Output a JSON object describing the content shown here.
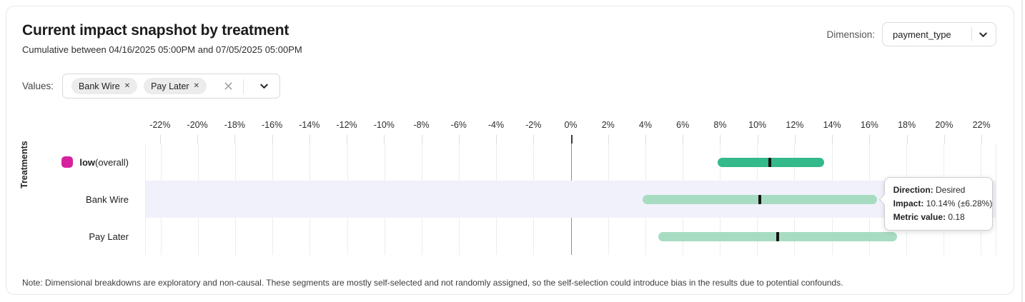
{
  "header": {
    "title": "Current impact snapshot by treatment",
    "subtitle": "Cumulative between 04/16/2025 05:00PM and 07/05/2025 05:00PM"
  },
  "dimension_selector": {
    "label": "Dimension:",
    "selected_value": "payment_type",
    "chevron_icon": "chevron-down"
  },
  "values_selector": {
    "label": "Values:",
    "chips": [
      {
        "label": "Bank Wire",
        "remove_icon": "✕"
      },
      {
        "label": "Pay Later",
        "remove_icon": "✕"
      }
    ],
    "clear_icon": "clear-x",
    "chevron_icon": "chevron-down"
  },
  "chart_data": {
    "type": "bar",
    "subtype": "horizontal-interval",
    "title": "Current impact snapshot by treatment",
    "xlabel": "",
    "ylabel": "Treatments",
    "x_unit": "%",
    "xlim": [
      -22.8,
      22.8
    ],
    "x_ticks": [
      -22,
      -20,
      -18,
      -16,
      -14,
      -12,
      -10,
      -8,
      -6,
      -4,
      -2,
      0,
      2,
      4,
      6,
      8,
      10,
      12,
      14,
      16,
      18,
      20,
      22
    ],
    "x_tick_suffix": "%",
    "grid": true,
    "rows": [
      {
        "label": "low",
        "label_suffix": " (overall)",
        "bold_label": true,
        "swatch_color": "#d6219f",
        "low": 7.9,
        "center": 10.7,
        "high": 13.6,
        "bar_color": "#34b98a",
        "marker_color": "#131313",
        "highlighted": false
      },
      {
        "label": "Bank Wire",
        "label_suffix": "",
        "bold_label": false,
        "swatch_color": null,
        "low": 3.86,
        "center": 10.14,
        "high": 16.42,
        "bar_color": "#a8dcc2",
        "marker_color": "#131313",
        "highlighted": true
      },
      {
        "label": "Pay Later",
        "label_suffix": "",
        "bold_label": false,
        "swatch_color": null,
        "low": 4.7,
        "center": 11.1,
        "high": 17.5,
        "bar_color": "#a8dcc2",
        "marker_color": "#131313",
        "highlighted": false
      }
    ],
    "colors": {
      "zero_line": "#8f8f8f",
      "gridline": "#ededed",
      "row_highlight": "#f1f1fb"
    }
  },
  "tooltip": {
    "anchor_row": "Bank Wire",
    "rows": [
      {
        "label": "Direction:",
        "value": "Desired"
      },
      {
        "label": "Impact:",
        "value": "10.14% (±6.28%)"
      },
      {
        "label": "Metric value:",
        "value": "0.18"
      }
    ]
  },
  "note": "Note: Dimensional breakdowns are exploratory and non-causal. These segments are mostly self-selected and not randomly assigned, so the self-selection could introduce bias in the results due to potential confounds."
}
